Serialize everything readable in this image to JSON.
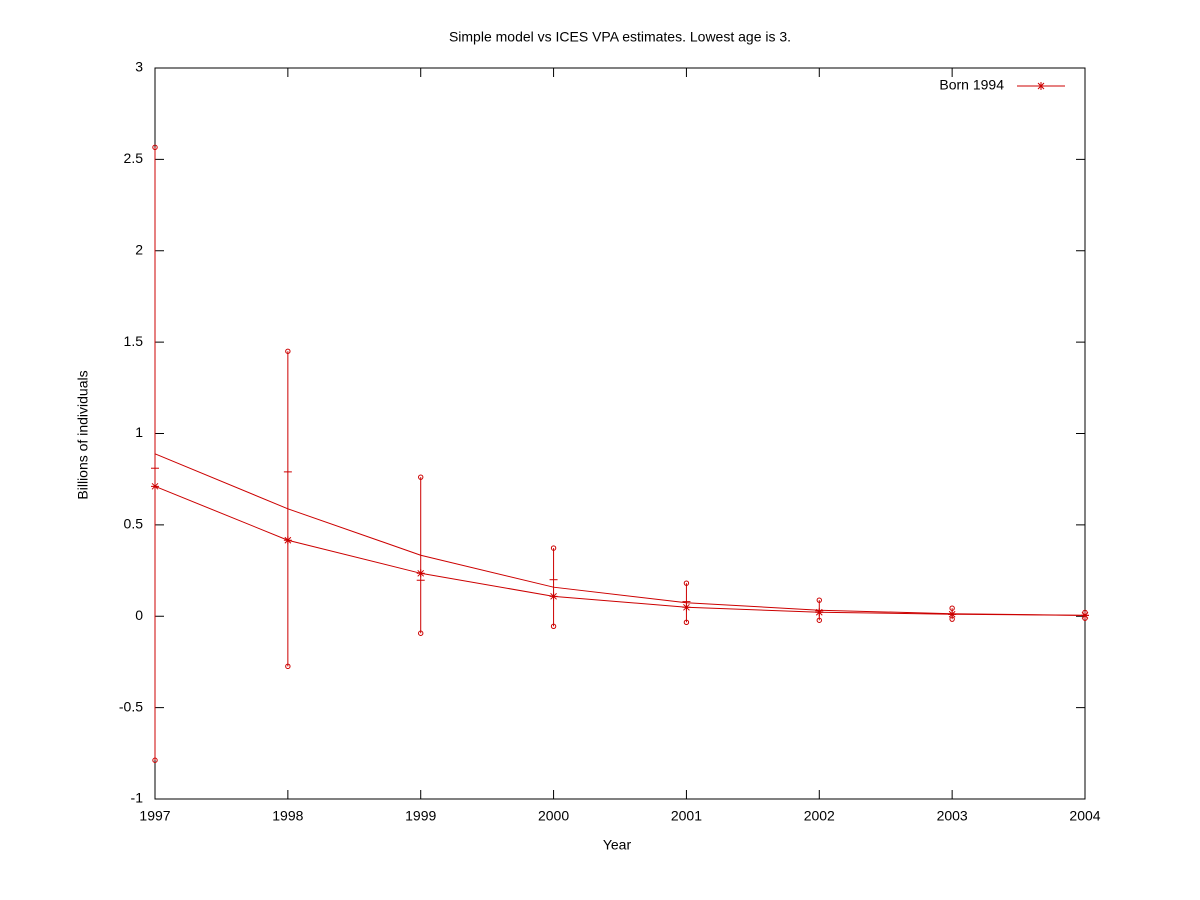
{
  "chart_data": {
    "type": "line",
    "title": "Simple model vs ICES VPA estimates. Lowest age is 3.",
    "xlabel": "Year",
    "ylabel": "Billions of individuals",
    "x": [
      1997,
      1998,
      1999,
      2000,
      2001,
      2002,
      2003,
      2004
    ],
    "series": [
      {
        "name": "Born 1994",
        "color": "#cc0000",
        "marker": "star",
        "values": [
          0.711,
          0.416,
          0.235,
          0.109,
          0.049,
          0.022,
          0.011,
          0.005
        ]
      },
      {
        "color": "#cc0000",
        "marker": "none",
        "values": [
          0.889,
          0.588,
          0.334,
          0.159,
          0.074,
          0.033,
          0.014,
          0.005
        ],
        "errors": [
          1.677,
          0.862,
          0.427,
          0.214,
          0.107,
          0.055,
          0.03,
          0.016
        ]
      },
      {
        "color": "#cc0000",
        "marker": "dash",
        "line": false,
        "values": [
          0.81,
          0.79,
          0.197,
          0.2,
          0.08,
          0.03,
          0.01,
          0.005
        ]
      }
    ],
    "xlim": [
      1997,
      2004
    ],
    "xticks": [
      1997,
      1998,
      1999,
      2000,
      2001,
      2002,
      2003,
      2004
    ],
    "ylim": [
      -1,
      3
    ],
    "yticks": [
      -1,
      -0.5,
      0,
      0.5,
      1,
      1.5,
      2,
      2.5,
      3
    ],
    "legend": "upper right"
  }
}
